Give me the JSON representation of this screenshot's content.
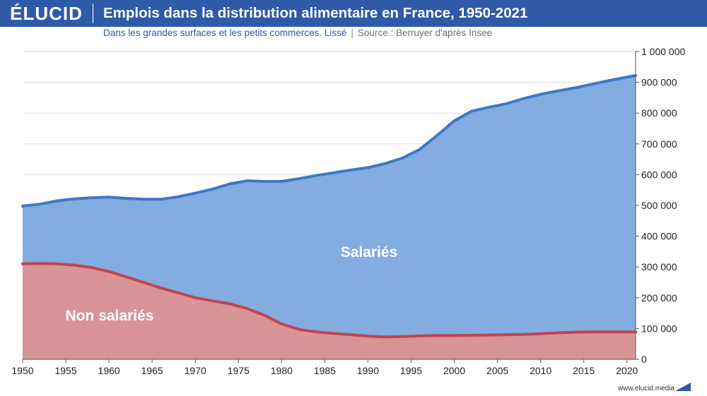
{
  "header": {
    "logo": "ÉLUCID",
    "title": "Emplois dans la distribution alimentaire en France, 1950-2021"
  },
  "subtitle": "Dans les grandes surfaces et les petits commerces. Lissé",
  "separator": "|",
  "source": "Source : Berruyer d'après Insee",
  "footer": "www.elucid.media",
  "colors": {
    "header_bg": "#2f5aa8",
    "salaries_fill": "#83ace0",
    "salaries_line": "#3d78c8",
    "non_salaries_fill": "#d89497",
    "non_salaries_line": "#c1444c"
  },
  "chart_data": {
    "type": "area",
    "stacked": true,
    "xlim": [
      1950,
      2021
    ],
    "ylim": [
      0,
      1000000
    ],
    "x_ticks": [
      "1950",
      "1955",
      "1960",
      "1965",
      "1970",
      "1975",
      "1980",
      "1985",
      "1990",
      "1995",
      "2000",
      "2005",
      "2010",
      "2015",
      "2020"
    ],
    "y_ticks": [
      "0",
      "100 000",
      "200 000",
      "300 000",
      "400 000",
      "500 000",
      "600 000",
      "700 000",
      "800 000",
      "900 000",
      "1 000 000"
    ],
    "y_tick_values": [
      0,
      100000,
      200000,
      300000,
      400000,
      500000,
      600000,
      700000,
      800000,
      900000,
      1000000
    ],
    "grid": true,
    "x": [
      1950,
      1952,
      1954,
      1956,
      1958,
      1960,
      1962,
      1964,
      1966,
      1968,
      1970,
      1972,
      1974,
      1976,
      1978,
      1980,
      1982,
      1984,
      1986,
      1988,
      1990,
      1992,
      1994,
      1996,
      1998,
      2000,
      2002,
      2004,
      2006,
      2008,
      2010,
      2012,
      2014,
      2016,
      2018,
      2020,
      2021
    ],
    "series": [
      {
        "name": "Non salariés",
        "values": [
          310000,
          311000,
          310000,
          306000,
          298000,
          285000,
          268000,
          250000,
          232000,
          216000,
          200000,
          190000,
          180000,
          165000,
          143000,
          115000,
          97000,
          89000,
          84000,
          80000,
          75000,
          73000,
          74000,
          76000,
          77000,
          77000,
          78000,
          79000,
          80000,
          81000,
          83000,
          86000,
          88000,
          89000,
          89000,
          89000,
          89000
        ]
      },
      {
        "name": "Salariés",
        "values": [
          188000,
          193000,
          205000,
          215000,
          227000,
          242000,
          255000,
          270000,
          288000,
          312000,
          340000,
          363000,
          390000,
          415000,
          435000,
          463000,
          490000,
          508000,
          522000,
          535000,
          548000,
          563000,
          580000,
          606000,
          650000,
          698000,
          728000,
          740000,
          750000,
          766000,
          778000,
          786000,
          794000,
          805000,
          817000,
          828000,
          833000
        ]
      }
    ],
    "total": [
      498000,
      504000,
      515000,
      521000,
      525000,
      527000,
      523000,
      520000,
      520000,
      528000,
      540000,
      553000,
      570000,
      580000,
      578000,
      578000,
      587000,
      597000,
      606000,
      615000,
      623000,
      636000,
      654000,
      682000,
      727000,
      775000,
      806000,
      819000,
      830000,
      847000,
      861000,
      872000,
      882000,
      894000,
      906000,
      917000,
      922000
    ],
    "labels": {
      "salaries": "Salariés",
      "non_salaries": "Non salariés"
    }
  }
}
